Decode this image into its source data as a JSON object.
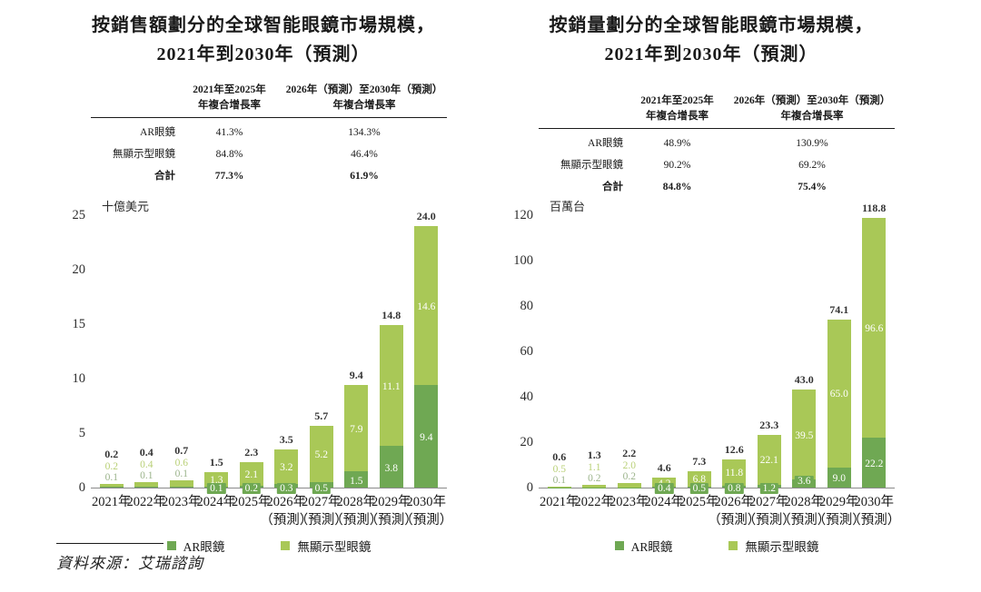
{
  "colors": {
    "ar_green": "#6fa853",
    "light_green": "#a9c857",
    "above_light_text": "#b9d077",
    "above_ar_text": "#9cb48c",
    "total_text": "#333333",
    "axis_line": "#8a8a8a"
  },
  "legend": {
    "ar": "AR眼鏡",
    "non_display": "無顯示型眼鏡"
  },
  "source": {
    "label": "資料來源：艾瑞諮詢"
  },
  "figures": [
    {
      "title_line1": "按銷售額劃分的全球智能眼鏡市場規模，",
      "title_line2": "2021年到2030年（預測）",
      "unit": "十億美元",
      "table": {
        "header_col1_line1": "2021年至2025年",
        "header_col1_line2": "年複合增長率",
        "header_col2_line1": "2026年（預測）至2030年（預測）",
        "header_col2_line2": "年複合增長率",
        "rows": [
          {
            "label": "AR眼鏡",
            "col1": "41.3%",
            "col2": "134.3%"
          },
          {
            "label": "無顯示型眼鏡",
            "col1": "84.8%",
            "col2": "46.4%"
          },
          {
            "label": "合計",
            "col1": "77.3%",
            "col2": "61.9%"
          }
        ]
      }
    },
    {
      "title_line1": "按銷量劃分的全球智能眼鏡市場規模，",
      "title_line2": "2021年到2030年（預測）",
      "unit": "百萬台",
      "table": {
        "header_col1_line1": "2021年至2025年",
        "header_col1_line2": "年複合增長率",
        "header_col2_line1": "2026年（預測）至2030年（預測）",
        "header_col2_line2": "年複合增長率",
        "rows": [
          {
            "label": "AR眼鏡",
            "col1": "48.9%",
            "col2": "130.9%"
          },
          {
            "label": "無顯示型眼鏡",
            "col1": "90.2%",
            "col2": "69.2%"
          },
          {
            "label": "合計",
            "col1": "84.8%",
            "col2": "75.4%"
          }
        ]
      }
    }
  ],
  "chart_data": [
    {
      "type": "bar",
      "stacked": true,
      "title": "按銷售額劃分的全球智能眼鏡市場規模，2021年到2030年（預測）",
      "ylabel": "十億美元",
      "categories": [
        "2021年",
        "2022年",
        "2023年",
        "2024年",
        "2025年",
        "2026年",
        "2027年",
        "2028年",
        "2029年",
        "2030年"
      ],
      "forecast_suffix": "（預測）",
      "forecast_from_index": 5,
      "series": [
        {
          "name": "AR眼鏡",
          "color": "#6fa853",
          "values": [
            0.1,
            0.1,
            0.1,
            0.1,
            0.2,
            0.3,
            0.5,
            1.5,
            3.8,
            9.4
          ]
        },
        {
          "name": "無顯示型眼鏡",
          "color": "#a9c857",
          "values": [
            0.2,
            0.4,
            0.6,
            1.3,
            2.1,
            3.2,
            5.2,
            7.9,
            11.1,
            14.6
          ]
        }
      ],
      "totals": [
        0.2,
        0.4,
        0.7,
        1.5,
        2.3,
        3.5,
        5.7,
        9.4,
        14.8,
        24.0
      ],
      "ylim": [
        0,
        25
      ],
      "yticks": [
        0,
        5,
        10,
        15,
        20,
        25
      ],
      "grid": false,
      "legend_position": "bottom",
      "legend_entries": [
        "AR眼鏡",
        "無顯示型眼鏡"
      ]
    },
    {
      "type": "bar",
      "stacked": true,
      "title": "按銷量劃分的全球智能眼鏡市場規模，2021年到2030年（預測）",
      "ylabel": "百萬台",
      "categories": [
        "2021年",
        "2022年",
        "2023年",
        "2024年",
        "2025年",
        "2026年",
        "2027年",
        "2028年",
        "2029年",
        "2030年"
      ],
      "forecast_suffix": "（預測）",
      "forecast_from_index": 5,
      "series": [
        {
          "name": "AR眼鏡",
          "color": "#6fa853",
          "values": [
            0.1,
            0.2,
            0.2,
            0.4,
            0.5,
            0.8,
            1.2,
            3.6,
            9.0,
            22.2
          ]
        },
        {
          "name": "無顯示型眼鏡",
          "color": "#a9c857",
          "values": [
            0.5,
            1.1,
            2.0,
            4.2,
            6.8,
            11.8,
            22.1,
            39.5,
            65.0,
            96.6
          ]
        }
      ],
      "totals": [
        0.6,
        1.3,
        2.2,
        4.6,
        7.3,
        12.6,
        23.3,
        43.0,
        74.1,
        118.8
      ],
      "ylim": [
        0,
        120
      ],
      "yticks": [
        0,
        20,
        40,
        60,
        80,
        100,
        120
      ],
      "grid": false,
      "legend_position": "bottom",
      "legend_entries": [
        "AR眼鏡",
        "無顯示型眼鏡"
      ]
    }
  ]
}
